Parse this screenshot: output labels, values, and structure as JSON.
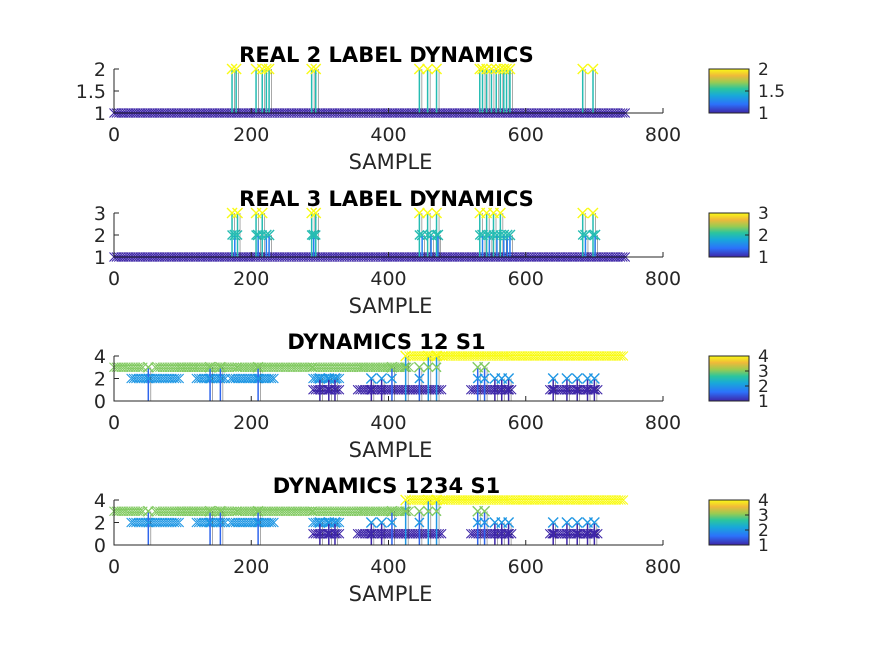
{
  "chart_data": [
    {
      "type": "scatter",
      "title": "REAL 2 LABEL DYNAMICS",
      "xlabel": "SAMPLE",
      "xlim": [
        0,
        800
      ],
      "ylim": [
        1,
        2
      ],
      "xticks": [
        "0",
        "200",
        "400",
        "600",
        "800"
      ],
      "yticks": [
        "1",
        "1.5",
        "2"
      ],
      "colorbar_ticks": [
        "1",
        "1.5",
        "2"
      ],
      "colorbar_range": [
        1,
        2
      ],
      "baseline": 1,
      "baseline_xrange": [
        0,
        745
      ],
      "spikes": [
        {
          "x": 172,
          "y": 2
        },
        {
          "x": 178,
          "y": 2
        },
        {
          "x": 207,
          "y": 2
        },
        {
          "x": 216,
          "y": 2
        },
        {
          "x": 222,
          "y": 2
        },
        {
          "x": 226,
          "y": 2
        },
        {
          "x": 288,
          "y": 2
        },
        {
          "x": 294,
          "y": 2
        },
        {
          "x": 445,
          "y": 2
        },
        {
          "x": 457,
          "y": 2
        },
        {
          "x": 470,
          "y": 2
        },
        {
          "x": 533,
          "y": 2
        },
        {
          "x": 537,
          "y": 2
        },
        {
          "x": 543,
          "y": 2
        },
        {
          "x": 550,
          "y": 2
        },
        {
          "x": 557,
          "y": 2
        },
        {
          "x": 563,
          "y": 2
        },
        {
          "x": 568,
          "y": 2
        },
        {
          "x": 572,
          "y": 2
        },
        {
          "x": 577,
          "y": 2
        },
        {
          "x": 683,
          "y": 2
        },
        {
          "x": 698,
          "y": 2
        }
      ]
    },
    {
      "type": "scatter",
      "title": "REAL 3 LABEL DYNAMICS",
      "xlabel": "SAMPLE",
      "xlim": [
        0,
        800
      ],
      "ylim": [
        1,
        3
      ],
      "xticks": [
        "0",
        "200",
        "400",
        "600",
        "800"
      ],
      "yticks": [
        "1",
        "2",
        "3"
      ],
      "colorbar_ticks": [
        "1",
        "2",
        "3"
      ],
      "colorbar_range": [
        1,
        3
      ],
      "baseline": 1,
      "baseline_xrange": [
        0,
        745
      ],
      "spikes": [
        {
          "x": 172,
          "y": 3
        },
        {
          "x": 176,
          "y": 2
        },
        {
          "x": 180,
          "y": 3
        },
        {
          "x": 207,
          "y": 3
        },
        {
          "x": 210,
          "y": 2
        },
        {
          "x": 216,
          "y": 3
        },
        {
          "x": 222,
          "y": 2
        },
        {
          "x": 226,
          "y": 2
        },
        {
          "x": 288,
          "y": 3
        },
        {
          "x": 291,
          "y": 2
        },
        {
          "x": 294,
          "y": 3
        },
        {
          "x": 445,
          "y": 3
        },
        {
          "x": 449,
          "y": 2
        },
        {
          "x": 457,
          "y": 3
        },
        {
          "x": 462,
          "y": 2
        },
        {
          "x": 470,
          "y": 3
        },
        {
          "x": 472,
          "y": 2
        },
        {
          "x": 533,
          "y": 3
        },
        {
          "x": 537,
          "y": 2
        },
        {
          "x": 543,
          "y": 3
        },
        {
          "x": 547,
          "y": 2
        },
        {
          "x": 553,
          "y": 3
        },
        {
          "x": 558,
          "y": 2
        },
        {
          "x": 563,
          "y": 3
        },
        {
          "x": 568,
          "y": 2
        },
        {
          "x": 573,
          "y": 2
        },
        {
          "x": 577,
          "y": 2
        },
        {
          "x": 683,
          "y": 3
        },
        {
          "x": 687,
          "y": 2
        },
        {
          "x": 698,
          "y": 3
        },
        {
          "x": 701,
          "y": 2
        }
      ]
    },
    {
      "type": "scatter",
      "title": "DYNAMICS 12 S1",
      "xlabel": "SAMPLE",
      "xlim": [
        0,
        800
      ],
      "ylim": [
        0,
        4
      ],
      "xticks": [
        "0",
        "200",
        "400",
        "600",
        "800"
      ],
      "yticks": [
        "0",
        "2",
        "4"
      ],
      "colorbar_ticks": [
        "1",
        "2",
        "3",
        "4"
      ],
      "colorbar_range": [
        1,
        4
      ],
      "bands": [
        {
          "y": 3,
          "x": [
            0,
            45
          ]
        },
        {
          "y": 2,
          "x": [
            25,
            95
          ]
        },
        {
          "y": 3,
          "x": [
            60,
            120
          ]
        },
        {
          "y": 2,
          "x": [
            120,
            165
          ]
        },
        {
          "y": 3,
          "x": [
            95,
            180
          ]
        },
        {
          "y": 2,
          "x": [
            170,
            235
          ]
        },
        {
          "y": 3,
          "x": [
            180,
            290
          ]
        },
        {
          "y": 2,
          "x": [
            290,
            330
          ]
        },
        {
          "y": 1,
          "x": [
            290,
            330
          ]
        },
        {
          "y": 3,
          "x": [
            290,
            360
          ]
        },
        {
          "y": 1,
          "x": [
            355,
            480
          ]
        },
        {
          "y": 3,
          "x": [
            360,
            430
          ]
        },
        {
          "y": 4,
          "x": [
            430,
            480
          ]
        },
        {
          "y": 4,
          "x": [
            480,
            745
          ]
        },
        {
          "y": 1,
          "x": [
            520,
            580
          ]
        },
        {
          "y": 1,
          "x": [
            635,
            705
          ]
        }
      ],
      "spikes": [
        {
          "x": 50,
          "y": 3
        },
        {
          "x": 140,
          "y": 3
        },
        {
          "x": 155,
          "y": 3
        },
        {
          "x": 210,
          "y": 3
        },
        {
          "x": 300,
          "y": 2
        },
        {
          "x": 313,
          "y": 2
        },
        {
          "x": 322,
          "y": 2
        },
        {
          "x": 375,
          "y": 2
        },
        {
          "x": 390,
          "y": 2
        },
        {
          "x": 405,
          "y": 3
        },
        {
          "x": 425,
          "y": 4
        },
        {
          "x": 445,
          "y": 3
        },
        {
          "x": 458,
          "y": 4
        },
        {
          "x": 470,
          "y": 4
        },
        {
          "x": 530,
          "y": 3
        },
        {
          "x": 540,
          "y": 3
        },
        {
          "x": 555,
          "y": 2
        },
        {
          "x": 565,
          "y": 2
        },
        {
          "x": 575,
          "y": 2
        },
        {
          "x": 640,
          "y": 2
        },
        {
          "x": 660,
          "y": 2
        },
        {
          "x": 675,
          "y": 2
        },
        {
          "x": 690,
          "y": 2
        },
        {
          "x": 700,
          "y": 2
        }
      ]
    },
    {
      "type": "scatter",
      "title": "DYNAMICS 1234 S1",
      "xlabel": "SAMPLE",
      "xlim": [
        0,
        800
      ],
      "ylim": [
        0,
        4
      ],
      "xticks": [
        "0",
        "200",
        "400",
        "600",
        "800"
      ],
      "yticks": [
        "0",
        "2",
        "4"
      ],
      "colorbar_ticks": [
        "1",
        "2",
        "3",
        "4"
      ],
      "colorbar_range": [
        1,
        4
      ],
      "bands": [
        {
          "y": 3,
          "x": [
            0,
            45
          ]
        },
        {
          "y": 2,
          "x": [
            25,
            95
          ]
        },
        {
          "y": 3,
          "x": [
            60,
            120
          ]
        },
        {
          "y": 2,
          "x": [
            120,
            165
          ]
        },
        {
          "y": 3,
          "x": [
            95,
            180
          ]
        },
        {
          "y": 2,
          "x": [
            170,
            235
          ]
        },
        {
          "y": 3,
          "x": [
            180,
            290
          ]
        },
        {
          "y": 2,
          "x": [
            290,
            330
          ]
        },
        {
          "y": 1,
          "x": [
            290,
            330
          ]
        },
        {
          "y": 3,
          "x": [
            290,
            360
          ]
        },
        {
          "y": 1,
          "x": [
            355,
            480
          ]
        },
        {
          "y": 3,
          "x": [
            360,
            430
          ]
        },
        {
          "y": 4,
          "x": [
            430,
            480
          ]
        },
        {
          "y": 4,
          "x": [
            480,
            745
          ]
        },
        {
          "y": 1,
          "x": [
            520,
            580
          ]
        },
        {
          "y": 1,
          "x": [
            635,
            705
          ]
        }
      ],
      "spikes": [
        {
          "x": 50,
          "y": 3
        },
        {
          "x": 140,
          "y": 3
        },
        {
          "x": 155,
          "y": 3
        },
        {
          "x": 210,
          "y": 3
        },
        {
          "x": 300,
          "y": 2
        },
        {
          "x": 313,
          "y": 2
        },
        {
          "x": 322,
          "y": 2
        },
        {
          "x": 375,
          "y": 2
        },
        {
          "x": 390,
          "y": 2
        },
        {
          "x": 405,
          "y": 3
        },
        {
          "x": 425,
          "y": 4
        },
        {
          "x": 445,
          "y": 3
        },
        {
          "x": 458,
          "y": 4
        },
        {
          "x": 470,
          "y": 4
        },
        {
          "x": 530,
          "y": 3
        },
        {
          "x": 540,
          "y": 3
        },
        {
          "x": 555,
          "y": 2
        },
        {
          "x": 565,
          "y": 2
        },
        {
          "x": 575,
          "y": 2
        },
        {
          "x": 640,
          "y": 2
        },
        {
          "x": 660,
          "y": 2
        },
        {
          "x": 675,
          "y": 2
        },
        {
          "x": 690,
          "y": 2
        },
        {
          "x": 700,
          "y": 2
        }
      ]
    }
  ]
}
